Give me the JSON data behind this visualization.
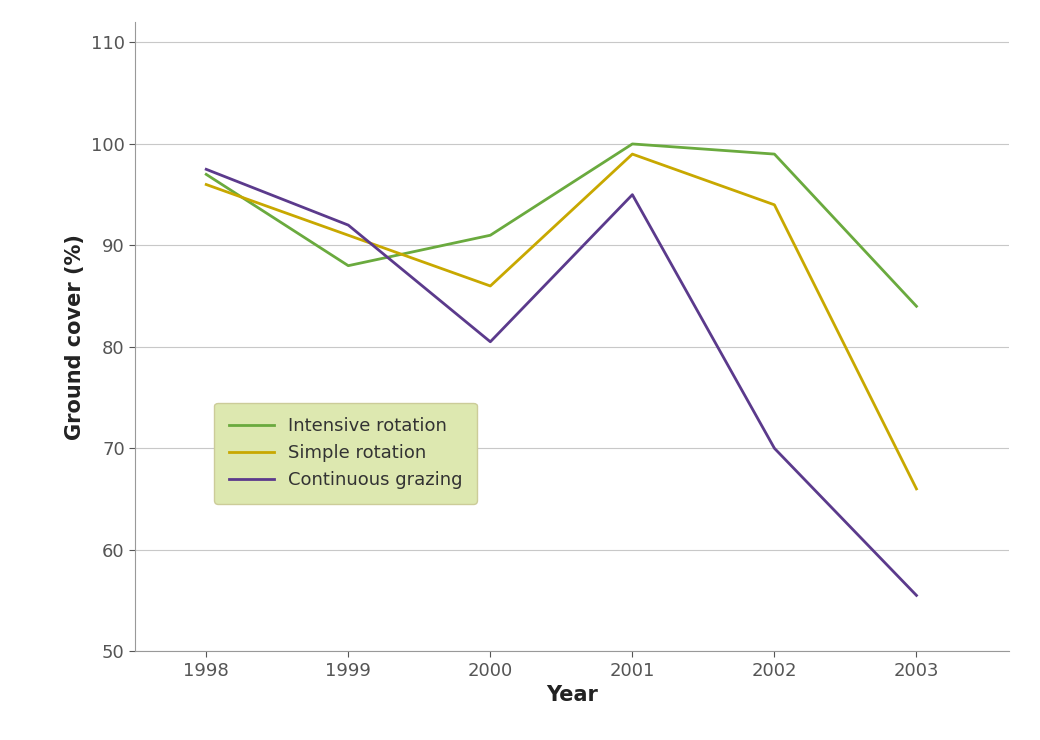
{
  "years": [
    1998,
    1999,
    2000,
    2001,
    2002,
    2003
  ],
  "intensive_rotation": [
    97,
    88,
    91,
    100,
    99,
    84
  ],
  "simple_rotation": [
    96,
    91,
    86,
    99,
    94,
    66
  ],
  "continuous_grazing": [
    97.5,
    92,
    80.5,
    95,
    70,
    55.5
  ],
  "intensive_color": "#6aaa3e",
  "simple_color": "#c8a800",
  "continuous_color": "#5b3a8c",
  "xlabel": "Year",
  "ylabel": "Ground cover (%)",
  "ylim": [
    50,
    112
  ],
  "yticks": [
    50,
    60,
    70,
    80,
    90,
    100,
    110
  ],
  "legend_labels": [
    "Intensive rotation",
    "Simple rotation",
    "Continuous grazing"
  ],
  "legend_bg_color": "#dde8b0",
  "line_width": 2.0,
  "grid_color": "#c8c8c8",
  "background_color": "#ffffff",
  "axes_color": "#999999"
}
